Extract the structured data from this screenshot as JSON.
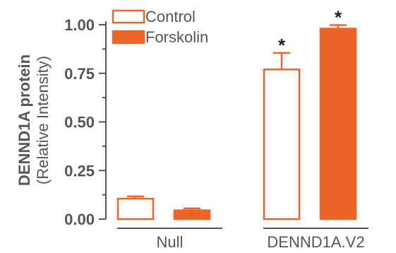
{
  "chart_data": {
    "type": "bar",
    "ylabel": "DENND1A protein",
    "ylabel_sub": "(Relative Intensity)",
    "xlabel": "",
    "ylim": [
      0,
      1.0
    ],
    "yticks": [
      0,
      0.25,
      0.5,
      0.75,
      1.0
    ],
    "ytick_labels": [
      "0.00",
      "0.25",
      "0.50",
      "0.75",
      "1.00"
    ],
    "categories": [
      "Null",
      "DENND1A.V2"
    ],
    "series": [
      {
        "name": "Control",
        "style": "outline",
        "values": [
          0.105,
          0.77
        ],
        "errors": [
          0.012,
          0.085
        ],
        "annotations": [
          "",
          "*"
        ]
      },
      {
        "name": "Forskolin",
        "style": "filled",
        "values": [
          0.045,
          0.98
        ],
        "errors": [
          0.01,
          0.018
        ],
        "annotations": [
          "",
          "*"
        ]
      }
    ],
    "legend_position": "top-left",
    "grid": false,
    "colors": {
      "bar": "#ec6428",
      "axis": "#555555",
      "text": "#555555",
      "annotation": "#222222"
    }
  }
}
